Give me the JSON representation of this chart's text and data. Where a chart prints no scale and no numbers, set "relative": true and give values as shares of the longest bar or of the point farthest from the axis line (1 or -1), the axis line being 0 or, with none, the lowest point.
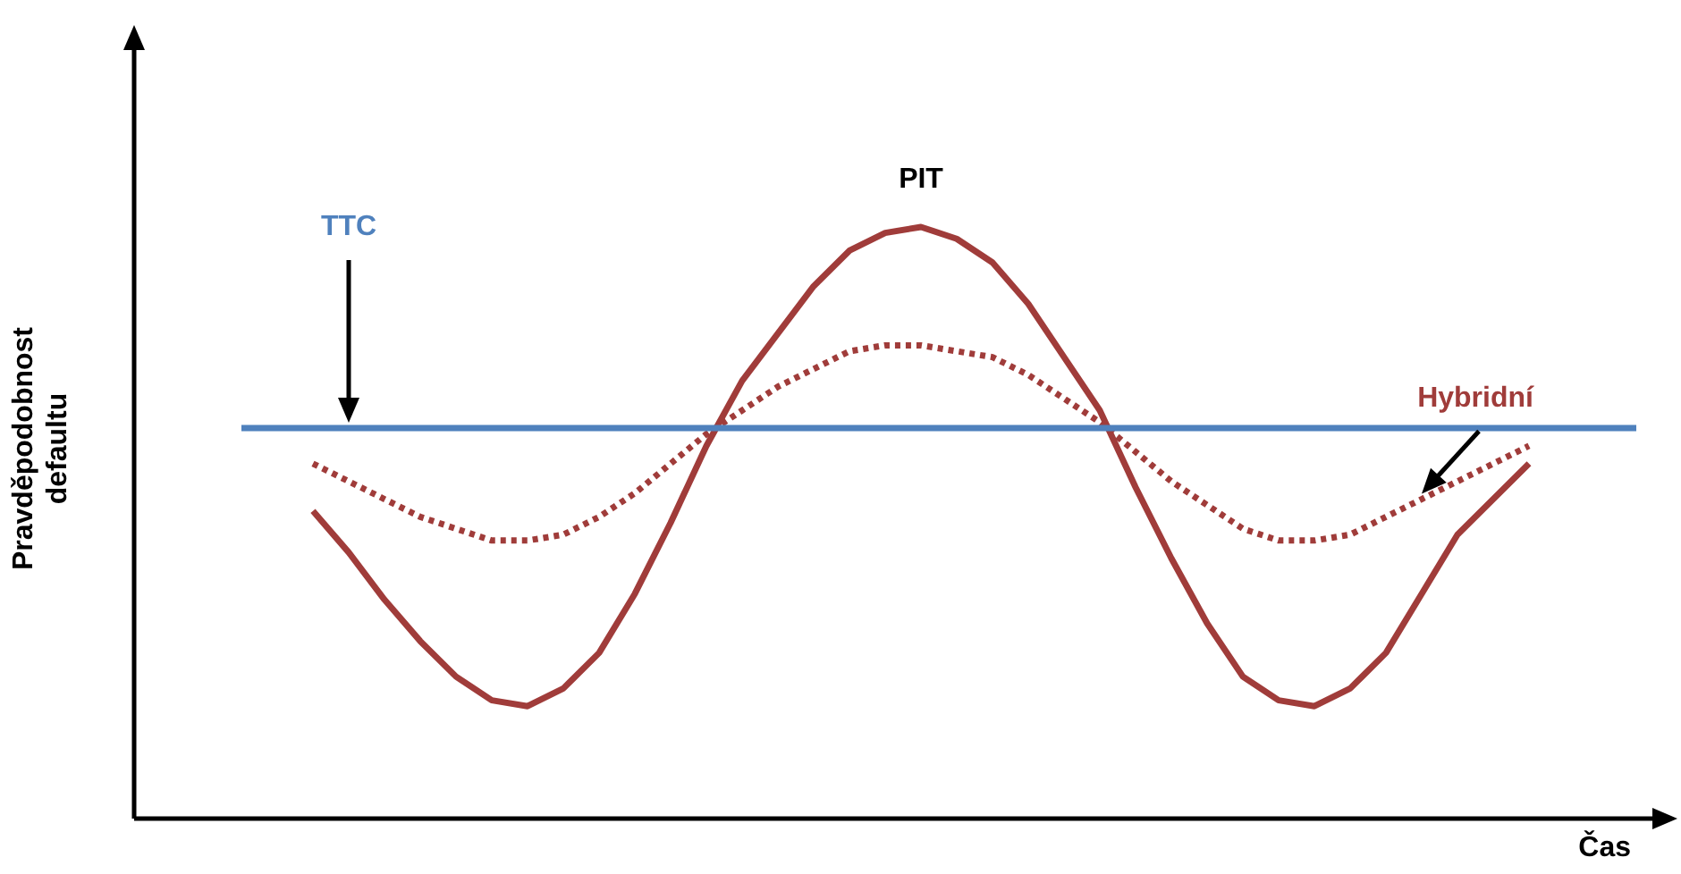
{
  "chart_data": {
    "type": "line",
    "relative": true,
    "xlabel": "Čas",
    "ylabel": "Pravděpodobnost defaultu",
    "legend": false,
    "marker": "none",
    "categories": [
      null,
      null,
      null,
      null,
      null,
      null,
      null,
      null,
      null,
      null,
      null,
      null,
      null,
      null,
      null,
      null,
      null,
      null,
      null,
      null,
      null,
      null,
      null,
      null,
      null,
      null,
      null,
      null,
      null,
      null,
      null,
      null,
      null,
      null,
      null,
      null,
      null,
      null,
      null,
      null,
      null,
      null,
      null,
      null
    ],
    "series": [
      {
        "name": "TTC",
        "color": "#4f81bd",
        "line_style": "solid",
        "values": [
          null,
          null,
          null,
          0.66,
          0.66,
          0.66,
          0.66,
          0.66,
          0.66,
          0.66,
          0.66,
          0.66,
          0.66,
          0.66,
          0.66,
          0.66,
          0.66,
          0.66,
          0.66,
          0.66,
          0.66,
          0.66,
          0.66,
          0.66,
          0.66,
          0.66,
          0.66,
          0.66,
          0.66,
          0.66,
          0.66,
          0.66,
          0.66,
          0.66,
          0.66,
          0.66,
          0.66,
          0.66,
          0.66,
          0.66,
          0.66,
          0.66,
          0.66,
          null
        ]
      },
      {
        "name": "PIT",
        "color": "#a03c3a",
        "line_style": "solid",
        "values": [
          null,
          null,
          null,
          null,
          null,
          0.52,
          0.45,
          0.37,
          0.3,
          0.24,
          0.2,
          0.19,
          0.22,
          0.28,
          0.38,
          0.5,
          0.63,
          0.74,
          0.82,
          0.9,
          0.96,
          0.99,
          1.0,
          0.98,
          0.94,
          0.87,
          0.78,
          0.69,
          0.56,
          0.44,
          0.33,
          0.24,
          0.2,
          0.19,
          0.22,
          0.28,
          0.38,
          0.48,
          0.54,
          0.6,
          null,
          null,
          null,
          null
        ]
      },
      {
        "name": "Hybridní",
        "color": "#a03c3a",
        "line_style": "dotted",
        "values": [
          null,
          null,
          null,
          null,
          null,
          0.6,
          0.57,
          0.54,
          0.51,
          0.49,
          0.47,
          0.47,
          0.48,
          0.51,
          0.55,
          0.6,
          0.65,
          0.69,
          0.73,
          0.76,
          0.79,
          0.8,
          0.8,
          0.79,
          0.78,
          0.75,
          0.71,
          0.67,
          0.62,
          0.57,
          0.53,
          0.49,
          0.47,
          0.47,
          0.48,
          0.51,
          0.54,
          0.57,
          0.6,
          0.63,
          null,
          null,
          null,
          null
        ]
      }
    ]
  }
}
